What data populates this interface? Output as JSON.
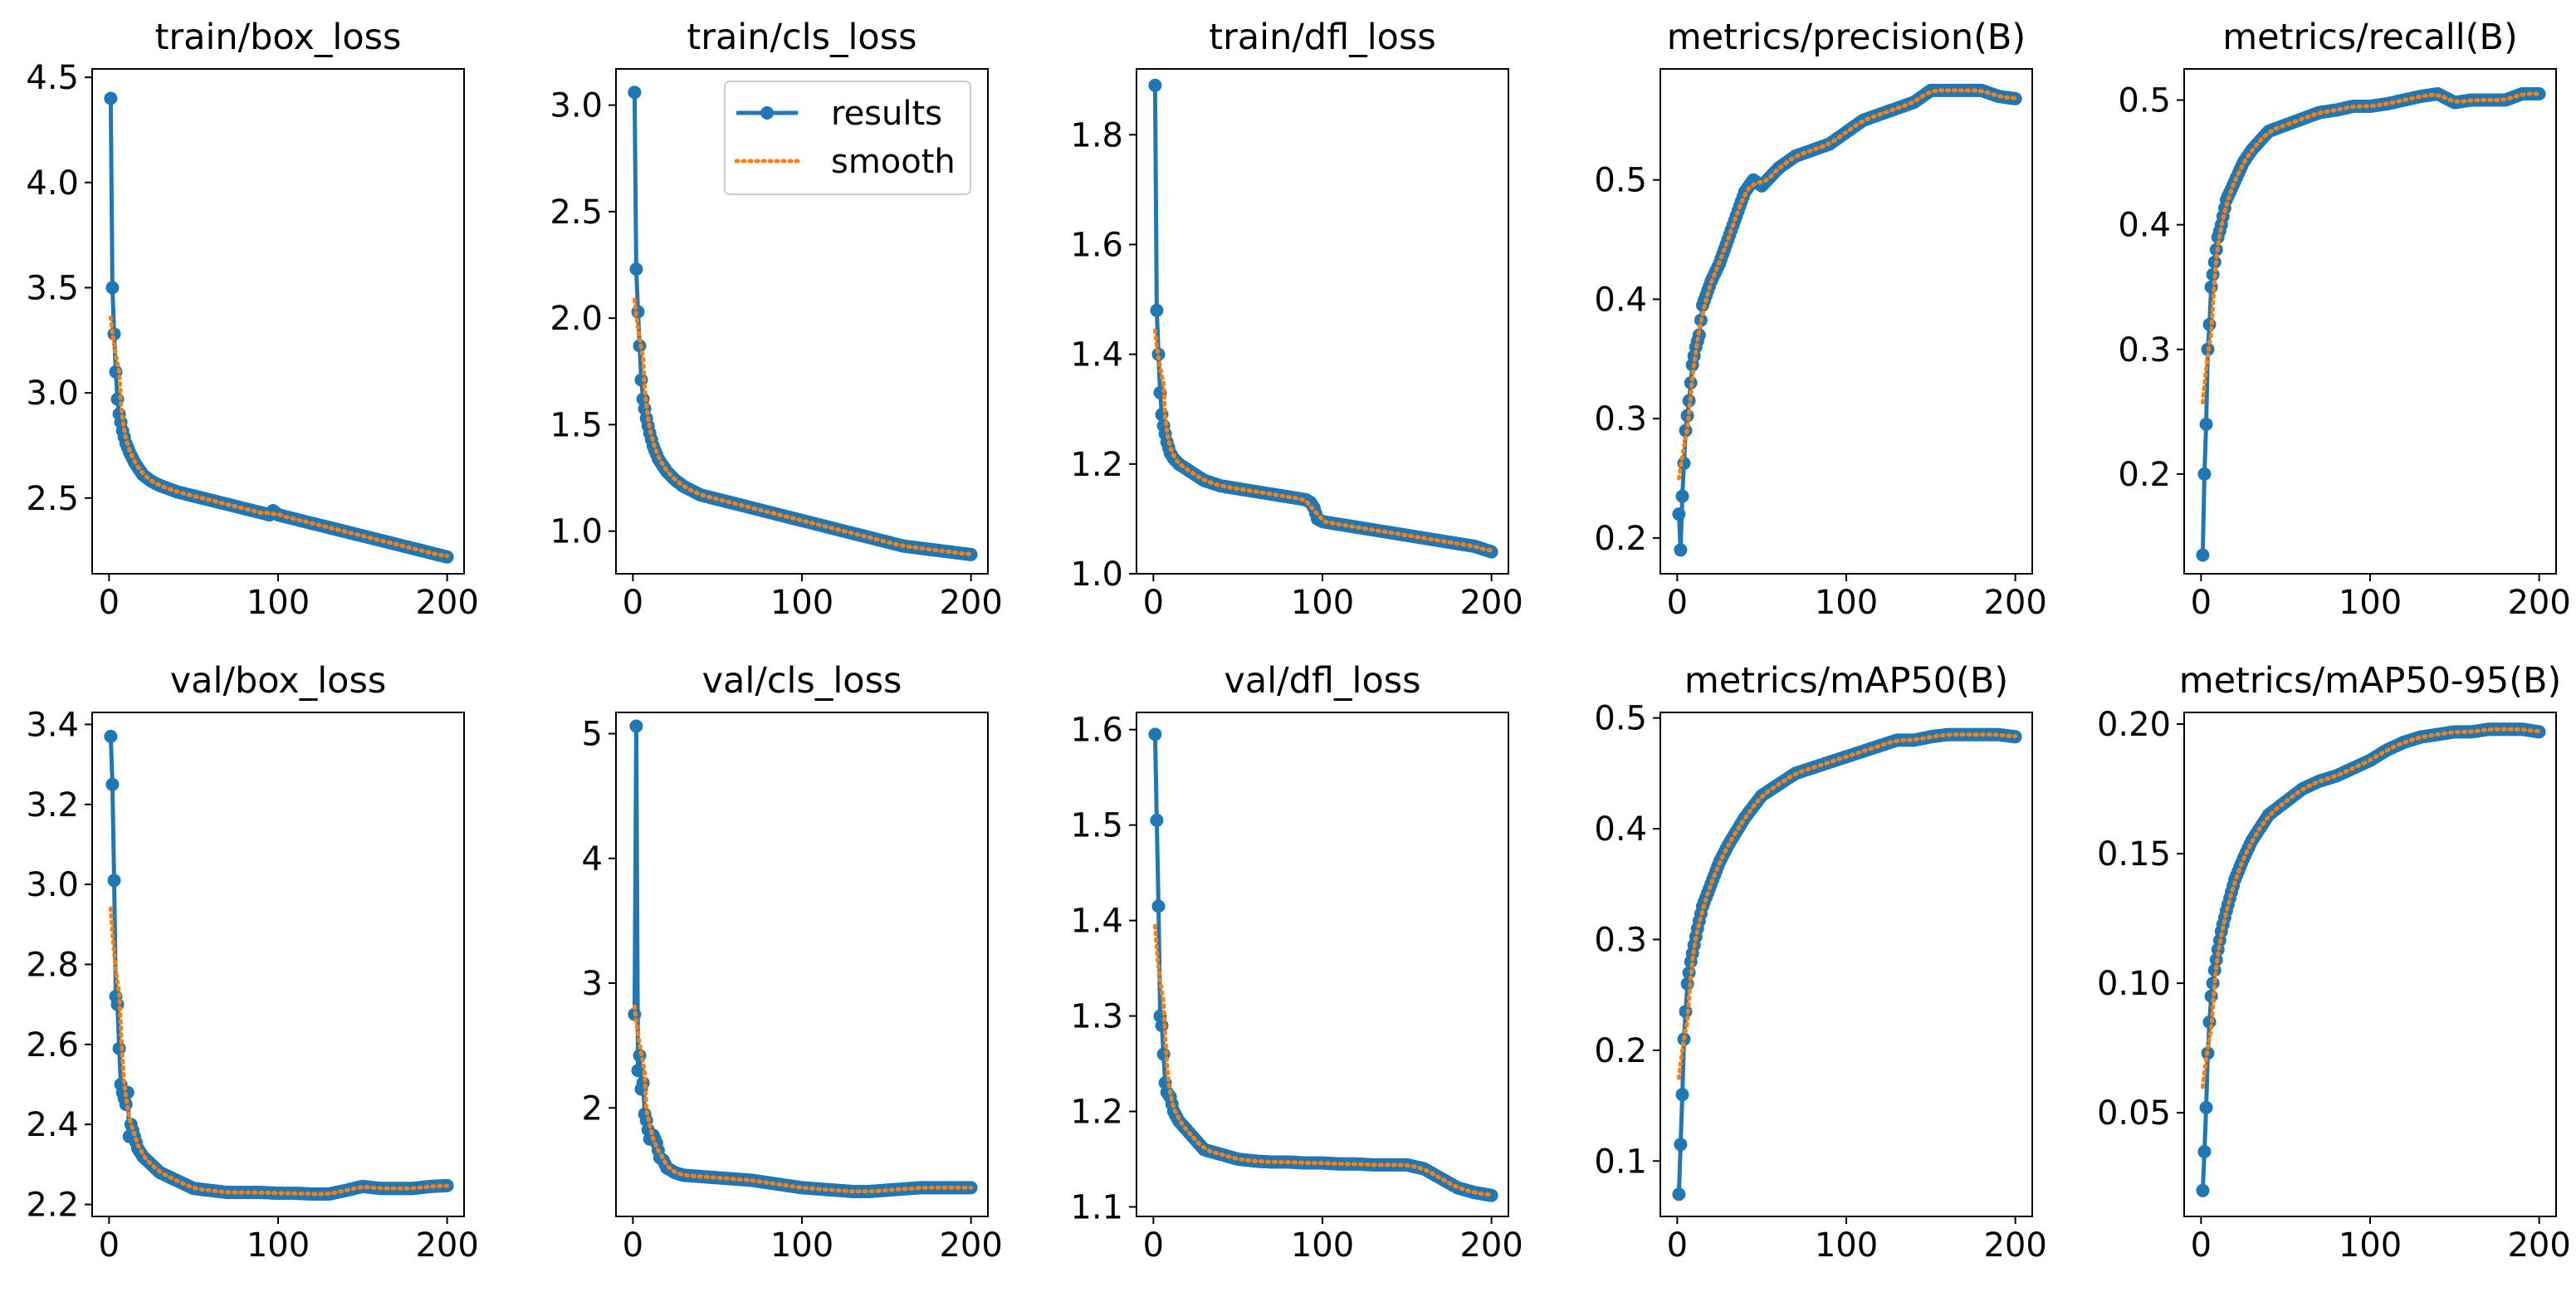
{
  "figure_colors": {
    "results": "#1f77b4",
    "smooth": "#ff7f0e",
    "axes": "#000000",
    "background": "#ffffff"
  },
  "legend": {
    "results_label": "results",
    "smooth_label": "smooth"
  },
  "chart_data": [
    {
      "type": "line",
      "title": "train/box_loss",
      "xlim": [
        -10,
        210
      ],
      "ylim": [
        2.14,
        4.54
      ],
      "xticks": [
        0,
        100,
        200
      ],
      "yticks": [
        2.5,
        3.0,
        3.5,
        4.0,
        4.5
      ],
      "ytick_decimals": 1,
      "x_anchors": [
        1,
        2,
        3,
        4,
        5,
        6,
        8,
        10,
        12,
        15,
        20,
        25,
        30,
        40,
        50,
        60,
        70,
        80,
        90,
        95,
        97,
        100,
        110,
        120,
        130,
        140,
        150,
        160,
        170,
        180,
        190,
        200
      ],
      "y_anchors": [
        4.4,
        3.5,
        3.28,
        3.1,
        2.97,
        2.9,
        2.82,
        2.76,
        2.72,
        2.67,
        2.61,
        2.58,
        2.56,
        2.53,
        2.51,
        2.49,
        2.47,
        2.45,
        2.43,
        2.42,
        2.44,
        2.42,
        2.4,
        2.38,
        2.36,
        2.34,
        2.32,
        2.3,
        2.28,
        2.26,
        2.24,
        2.22
      ]
    },
    {
      "type": "line",
      "title": "train/cls_loss",
      "xlim": [
        -10,
        210
      ],
      "ylim": [
        0.8,
        3.17
      ],
      "xticks": [
        0,
        100,
        200
      ],
      "yticks": [
        1.0,
        1.5,
        2.0,
        2.5,
        3.0
      ],
      "ytick_decimals": 1,
      "legend": true,
      "x_anchors": [
        1,
        2,
        3,
        4,
        5,
        6,
        8,
        10,
        12,
        15,
        20,
        25,
        30,
        40,
        50,
        60,
        70,
        80,
        90,
        100,
        110,
        120,
        130,
        140,
        150,
        160,
        170,
        180,
        190,
        200
      ],
      "y_anchors": [
        3.06,
        2.23,
        2.03,
        1.87,
        1.71,
        1.62,
        1.53,
        1.46,
        1.4,
        1.34,
        1.28,
        1.24,
        1.21,
        1.17,
        1.15,
        1.13,
        1.11,
        1.09,
        1.07,
        1.05,
        1.03,
        1.01,
        0.99,
        0.97,
        0.95,
        0.93,
        0.92,
        0.91,
        0.9,
        0.89
      ]
    },
    {
      "type": "line",
      "title": "train/dfl_loss",
      "xlim": [
        -10,
        210
      ],
      "ylim": [
        1.0,
        1.92
      ],
      "xticks": [
        0,
        100,
        200
      ],
      "yticks": [
        1.0,
        1.2,
        1.4,
        1.6,
        1.8
      ],
      "ytick_decimals": 1,
      "x_anchors": [
        1,
        2,
        3,
        4,
        5,
        6,
        8,
        10,
        12,
        15,
        20,
        25,
        30,
        40,
        50,
        60,
        70,
        80,
        90,
        93,
        95,
        97,
        100,
        110,
        120,
        130,
        140,
        150,
        160,
        170,
        180,
        190,
        200
      ],
      "y_anchors": [
        1.89,
        1.48,
        1.4,
        1.33,
        1.29,
        1.27,
        1.24,
        1.22,
        1.21,
        1.2,
        1.19,
        1.18,
        1.17,
        1.16,
        1.155,
        1.15,
        1.145,
        1.14,
        1.135,
        1.13,
        1.12,
        1.1,
        1.095,
        1.09,
        1.085,
        1.08,
        1.075,
        1.07,
        1.065,
        1.06,
        1.055,
        1.05,
        1.04
      ]
    },
    {
      "type": "line",
      "title": "metrics/precision(B)",
      "xlim": [
        -10,
        210
      ],
      "ylim": [
        0.17,
        0.593
      ],
      "xticks": [
        0,
        100,
        200
      ],
      "yticks": [
        0.2,
        0.3,
        0.4,
        0.5
      ],
      "ytick_decimals": 1,
      "x_anchors": [
        1,
        2,
        3,
        5,
        7,
        9,
        11,
        13,
        15,
        20,
        25,
        30,
        35,
        40,
        45,
        50,
        60,
        70,
        80,
        90,
        100,
        110,
        120,
        130,
        140,
        150,
        160,
        170,
        180,
        190,
        200
      ],
      "y_anchors": [
        0.22,
        0.19,
        0.235,
        0.29,
        0.315,
        0.345,
        0.36,
        0.37,
        0.395,
        0.415,
        0.43,
        0.45,
        0.47,
        0.49,
        0.5,
        0.495,
        0.51,
        0.52,
        0.525,
        0.53,
        0.54,
        0.55,
        0.555,
        0.56,
        0.565,
        0.575,
        0.575,
        0.575,
        0.575,
        0.57,
        0.568
      ]
    },
    {
      "type": "line",
      "title": "metrics/recall(B)",
      "xlim": [
        -10,
        210
      ],
      "ylim": [
        0.12,
        0.525
      ],
      "xticks": [
        0,
        100,
        200
      ],
      "yticks": [
        0.2,
        0.3,
        0.4,
        0.5
      ],
      "ytick_decimals": 1,
      "x_anchors": [
        1,
        2,
        3,
        4,
        5,
        6,
        8,
        10,
        12,
        15,
        20,
        25,
        30,
        40,
        50,
        60,
        70,
        80,
        90,
        100,
        110,
        120,
        130,
        140,
        150,
        160,
        170,
        180,
        190,
        200
      ],
      "y_anchors": [
        0.135,
        0.2,
        0.24,
        0.3,
        0.32,
        0.35,
        0.37,
        0.39,
        0.4,
        0.42,
        0.435,
        0.45,
        0.46,
        0.475,
        0.48,
        0.485,
        0.49,
        0.492,
        0.495,
        0.495,
        0.497,
        0.5,
        0.503,
        0.505,
        0.498,
        0.5,
        0.5,
        0.5,
        0.505,
        0.505
      ]
    },
    {
      "type": "line",
      "title": "val/box_loss",
      "xlim": [
        -10,
        210
      ],
      "ylim": [
        2.17,
        3.43
      ],
      "xticks": [
        0,
        100,
        200
      ],
      "yticks": [
        2.2,
        2.4,
        2.6,
        2.8,
        3.0,
        3.2,
        3.4
      ],
      "ytick_decimals": 1,
      "x_anchors": [
        1,
        2,
        3,
        4,
        5,
        6,
        7,
        8,
        10,
        11,
        12,
        13,
        15,
        17,
        20,
        25,
        30,
        40,
        50,
        60,
        70,
        80,
        90,
        100,
        110,
        120,
        130,
        140,
        150,
        160,
        170,
        180,
        190,
        200
      ],
      "y_anchors": [
        3.37,
        3.25,
        3.01,
        2.72,
        2.7,
        2.59,
        2.5,
        2.48,
        2.45,
        2.48,
        2.37,
        2.4,
        2.37,
        2.34,
        2.32,
        2.3,
        2.28,
        2.26,
        2.24,
        2.235,
        2.23,
        2.23,
        2.23,
        2.228,
        2.228,
        2.226,
        2.226,
        2.235,
        2.245,
        2.24,
        2.24,
        2.24,
        2.245,
        2.247
      ]
    },
    {
      "type": "line",
      "title": "val/cls_loss",
      "xlim": [
        -10,
        210
      ],
      "ylim": [
        1.13,
        5.17
      ],
      "xticks": [
        0,
        100,
        200
      ],
      "yticks": [
        2,
        3,
        4,
        5
      ],
      "ytick_decimals": 0,
      "x_anchors": [
        1,
        2,
        3,
        4,
        5,
        6,
        7,
        8,
        10,
        12,
        14,
        16,
        18,
        20,
        25,
        30,
        40,
        50,
        60,
        70,
        80,
        90,
        100,
        110,
        120,
        130,
        140,
        150,
        160,
        170,
        180,
        190,
        200
      ],
      "y_anchors": [
        2.75,
        5.06,
        2.3,
        2.42,
        2.15,
        2.2,
        1.95,
        1.9,
        1.75,
        1.78,
        1.72,
        1.6,
        1.58,
        1.52,
        1.48,
        1.46,
        1.45,
        1.44,
        1.43,
        1.42,
        1.4,
        1.38,
        1.36,
        1.35,
        1.34,
        1.33,
        1.33,
        1.34,
        1.35,
        1.36,
        1.36,
        1.36,
        1.36
      ]
    },
    {
      "type": "line",
      "title": "val/dfl_loss",
      "xlim": [
        -10,
        210
      ],
      "ylim": [
        1.09,
        1.618
      ],
      "xticks": [
        0,
        100,
        200
      ],
      "yticks": [
        1.1,
        1.2,
        1.3,
        1.4,
        1.5,
        1.6
      ],
      "ytick_decimals": 1,
      "x_anchors": [
        1,
        2,
        3,
        4,
        5,
        6,
        7,
        8,
        10,
        12,
        15,
        20,
        25,
        30,
        40,
        50,
        60,
        70,
        80,
        90,
        100,
        110,
        120,
        130,
        140,
        150,
        160,
        170,
        180,
        190,
        200
      ],
      "y_anchors": [
        1.595,
        1.505,
        1.415,
        1.3,
        1.29,
        1.26,
        1.23,
        1.22,
        1.215,
        1.2,
        1.19,
        1.18,
        1.17,
        1.16,
        1.155,
        1.15,
        1.148,
        1.147,
        1.147,
        1.146,
        1.146,
        1.145,
        1.145,
        1.144,
        1.144,
        1.144,
        1.14,
        1.13,
        1.12,
        1.115,
        1.112
      ]
    },
    {
      "type": "line",
      "title": "metrics/mAP50(B)",
      "xlim": [
        -10,
        210
      ],
      "ylim": [
        0.05,
        0.505
      ],
      "xticks": [
        0,
        100,
        200
      ],
      "yticks": [
        0.1,
        0.2,
        0.3,
        0.4,
        0.5
      ],
      "ytick_decimals": 1,
      "x_anchors": [
        1,
        2,
        3,
        4,
        5,
        6,
        8,
        10,
        12,
        15,
        20,
        25,
        30,
        40,
        50,
        60,
        70,
        80,
        90,
        100,
        110,
        120,
        130,
        140,
        150,
        160,
        170,
        180,
        190,
        200
      ],
      "y_anchors": [
        0.07,
        0.115,
        0.16,
        0.21,
        0.235,
        0.26,
        0.28,
        0.295,
        0.31,
        0.33,
        0.35,
        0.37,
        0.385,
        0.41,
        0.43,
        0.44,
        0.45,
        0.455,
        0.46,
        0.465,
        0.47,
        0.475,
        0.48,
        0.48,
        0.483,
        0.485,
        0.485,
        0.485,
        0.485,
        0.483
      ]
    },
    {
      "type": "line",
      "title": "metrics/mAP50-95(B)",
      "xlim": [
        -10,
        210
      ],
      "ylim": [
        0.01,
        0.2045
      ],
      "xticks": [
        0,
        100,
        200
      ],
      "yticks": [
        0.05,
        0.1,
        0.15,
        0.2
      ],
      "ytick_decimals": 2,
      "x_anchors": [
        1,
        2,
        3,
        4,
        5,
        6,
        8,
        10,
        12,
        15,
        20,
        25,
        30,
        40,
        50,
        60,
        70,
        80,
        90,
        100,
        110,
        120,
        130,
        140,
        150,
        160,
        170,
        180,
        190,
        200
      ],
      "y_anchors": [
        0.02,
        0.035,
        0.052,
        0.073,
        0.085,
        0.095,
        0.105,
        0.113,
        0.12,
        0.128,
        0.14,
        0.148,
        0.155,
        0.165,
        0.17,
        0.175,
        0.178,
        0.18,
        0.183,
        0.186,
        0.19,
        0.193,
        0.195,
        0.196,
        0.197,
        0.197,
        0.198,
        0.198,
        0.198,
        0.197
      ]
    }
  ]
}
